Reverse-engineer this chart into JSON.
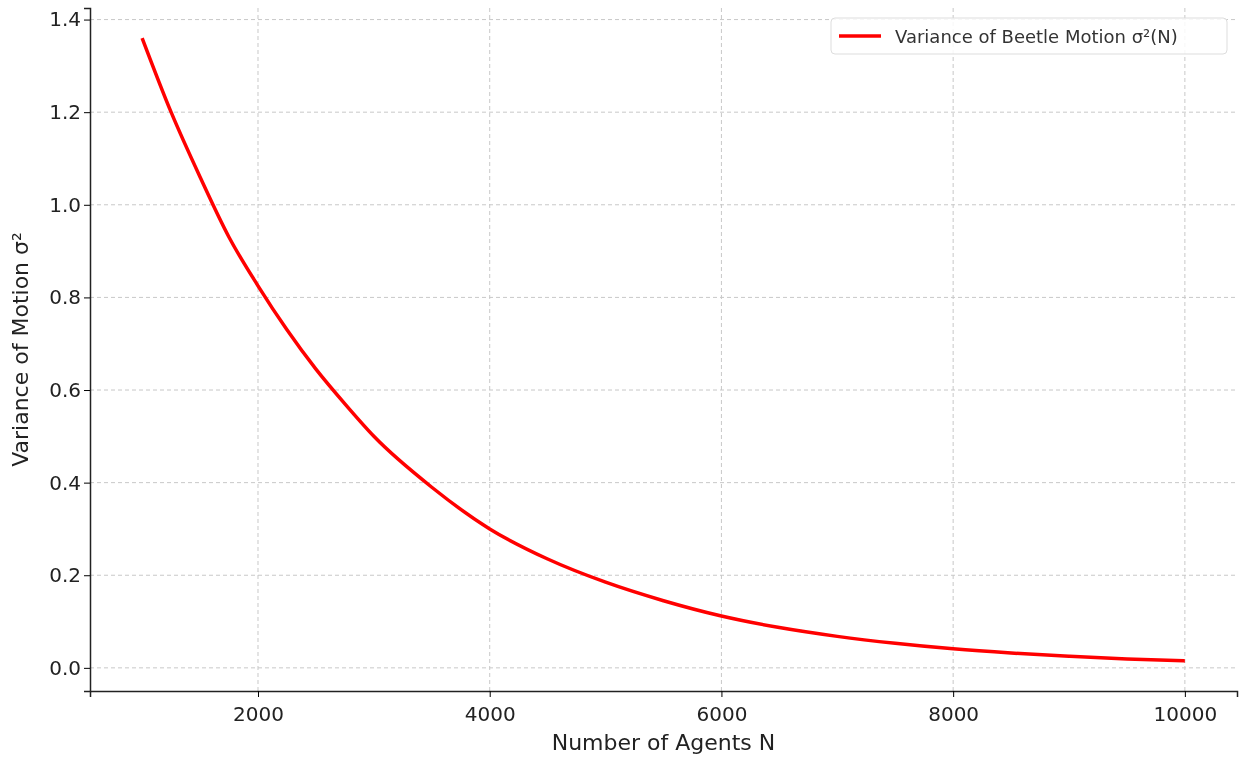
{
  "chart_data": {
    "type": "line",
    "xlabel": "Number of Agents N",
    "ylabel": "Variance of Motion σ²",
    "x": [
      1000,
      1250,
      1500,
      1750,
      2000,
      2250,
      2500,
      2750,
      3000,
      3500,
      4000,
      4500,
      5000,
      5500,
      6000,
      6500,
      7000,
      7500,
      8000,
      8500,
      9000,
      9500,
      10000
    ],
    "series": [
      {
        "name": "Variance of Beetle Motion σ²(N)",
        "color": "#ff0000",
        "values": [
          1.36,
          1.2,
          1.06,
          0.93,
          0.825,
          0.73,
          0.645,
          0.57,
          0.5,
          0.39,
          0.3,
          0.235,
          0.185,
          0.145,
          0.112,
          0.087,
          0.068,
          0.053,
          0.041,
          0.032,
          0.025,
          0.019,
          0.015
        ]
      }
    ],
    "xlim": [
      550,
      10450
    ],
    "ylim": [
      -0.05,
      1.425
    ],
    "xticks": [
      2000,
      4000,
      6000,
      8000,
      10000
    ],
    "yticks": [
      {
        "value": 0,
        "label": "0.0"
      },
      {
        "value": 0.2,
        "label": "0.2"
      },
      {
        "value": 0.4,
        "label": "0.4"
      },
      {
        "value": 0.6,
        "label": "0.6"
      },
      {
        "value": 0.8,
        "label": "0.8"
      },
      {
        "value": 1,
        "label": "1.0"
      },
      {
        "value": 1.2,
        "label": "1.2"
      },
      {
        "value": 1.4,
        "label": "1.4"
      }
    ],
    "grid": true,
    "legend": "top right",
    "marker": "none",
    "line_style": "solid"
  }
}
